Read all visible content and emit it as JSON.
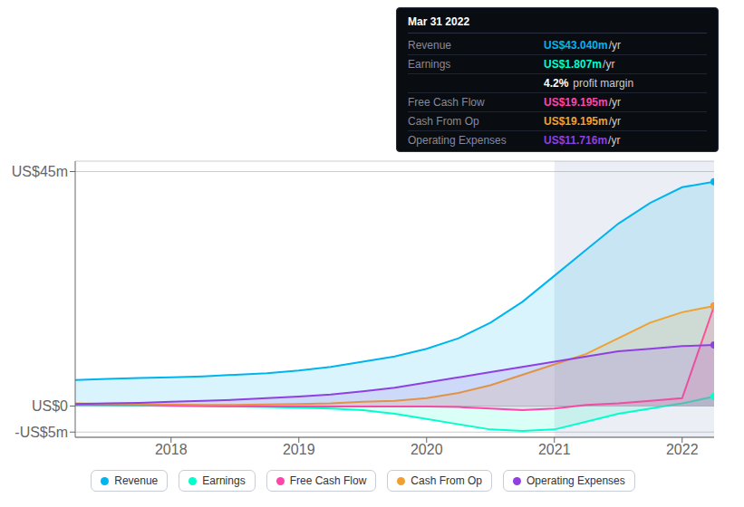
{
  "chart_data": {
    "type": "area",
    "x": [
      2017.25,
      2017.5,
      2017.75,
      2018.0,
      2018.25,
      2018.5,
      2018.75,
      2019.0,
      2019.25,
      2019.5,
      2019.75,
      2020.0,
      2020.25,
      2020.5,
      2020.75,
      2021.0,
      2021.25,
      2021.5,
      2021.75,
      2022.0,
      2022.25
    ],
    "series": [
      {
        "name": "Revenue",
        "color": "#00b4f0",
        "values": [
          5.0,
          5.2,
          5.4,
          5.5,
          5.7,
          6.0,
          6.3,
          6.8,
          7.5,
          8.5,
          9.5,
          11.0,
          13.0,
          16.0,
          20.0,
          25.0,
          30.0,
          35.0,
          39.0,
          42.0,
          43.04
        ]
      },
      {
        "name": "Earnings",
        "color": "#00ffcc",
        "values": [
          0.2,
          0.15,
          0.1,
          0.05,
          0.0,
          -0.1,
          -0.2,
          -0.3,
          -0.5,
          -0.8,
          -1.5,
          -2.5,
          -3.5,
          -4.5,
          -4.8,
          -4.5,
          -3.0,
          -1.5,
          -0.5,
          0.5,
          1.807
        ]
      },
      {
        "name": "Free Cash Flow",
        "color": "#ff44aa",
        "values": [
          0.3,
          0.25,
          0.2,
          0.1,
          0.0,
          -0.05,
          -0.1,
          -0.1,
          -0.1,
          -0.1,
          -0.1,
          -0.1,
          -0.2,
          -0.5,
          -0.8,
          -0.5,
          0.2,
          0.5,
          1.0,
          1.5,
          19.195
        ]
      },
      {
        "name": "Cash From Op",
        "color": "#f0a030",
        "values": [
          0.5,
          0.4,
          0.3,
          0.3,
          0.2,
          0.2,
          0.3,
          0.4,
          0.5,
          0.8,
          1.0,
          1.5,
          2.5,
          4.0,
          6.0,
          8.0,
          10.0,
          13.0,
          16.0,
          18.0,
          19.195
        ]
      },
      {
        "name": "Operating Expenses",
        "color": "#9040e0",
        "values": [
          0.4,
          0.5,
          0.6,
          0.8,
          1.0,
          1.2,
          1.5,
          1.8,
          2.2,
          2.8,
          3.5,
          4.5,
          5.5,
          6.5,
          7.5,
          8.5,
          9.5,
          10.5,
          11.0,
          11.5,
          11.716
        ]
      }
    ],
    "xlim": [
      2017.25,
      2022.25
    ],
    "xticks": [
      2018,
      2019,
      2020,
      2021,
      2022
    ],
    "ylim": [
      -6,
      47
    ],
    "yticks": [
      {
        "value": -5,
        "label": "-US$5m"
      },
      {
        "value": 0,
        "label": "US$0"
      },
      {
        "value": 45,
        "label": "US$45m"
      }
    ],
    "grid": true,
    "legend": "bottom",
    "highlight_x_start": 2021.0,
    "tooltip": {
      "title": "Mar 31 2022",
      "rows": [
        {
          "label": "Revenue",
          "value": "US$43.040m",
          "unit": "/yr",
          "color": "#00b4f0"
        },
        {
          "label": "Earnings",
          "value": "US$1.807m",
          "unit": "/yr",
          "color": "#00ffcc"
        },
        {
          "value": "4.2%",
          "unit": "profit margin",
          "color": "#ffffff"
        },
        {
          "label": "Free Cash Flow",
          "value": "US$19.195m",
          "unit": "/yr",
          "color": "#ff44aa"
        },
        {
          "label": "Cash From Op",
          "value": "US$19.195m",
          "unit": "/yr",
          "color": "#f0a030"
        },
        {
          "label": "Operating Expenses",
          "value": "US$11.716m",
          "unit": "/yr",
          "color": "#9040e0"
        }
      ]
    }
  }
}
